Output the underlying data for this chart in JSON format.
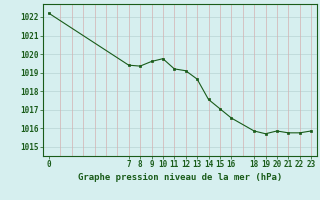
{
  "x": [
    0,
    7,
    8,
    9,
    10,
    11,
    12,
    13,
    14,
    15,
    16,
    18,
    19,
    20,
    21,
    22,
    23
  ],
  "y": [
    1022.2,
    1019.4,
    1019.35,
    1019.6,
    1019.75,
    1019.2,
    1019.1,
    1018.65,
    1017.55,
    1017.05,
    1016.55,
    1015.85,
    1015.7,
    1015.85,
    1015.75,
    1015.75,
    1015.85
  ],
  "xlim": [
    -0.5,
    23.5
  ],
  "ylim": [
    1014.5,
    1022.7
  ],
  "yticks": [
    1015,
    1016,
    1017,
    1018,
    1019,
    1020,
    1021,
    1022
  ],
  "xticks": [
    0,
    7,
    8,
    9,
    10,
    11,
    12,
    13,
    14,
    15,
    16,
    18,
    19,
    20,
    21,
    22,
    23
  ],
  "all_x_gridlines": [
    1,
    2,
    3,
    4,
    5,
    6,
    7,
    8,
    9,
    10,
    11,
    12,
    13,
    14,
    15,
    16,
    17,
    18,
    19,
    20,
    21,
    22,
    23
  ],
  "xlabel": "Graphe pression niveau de la mer (hPa)",
  "line_color": "#1a5c1a",
  "bg_color": "#d6efef",
  "hgrid_color": "#b8d4d4",
  "vgrid_color": "#d4b0b0"
}
